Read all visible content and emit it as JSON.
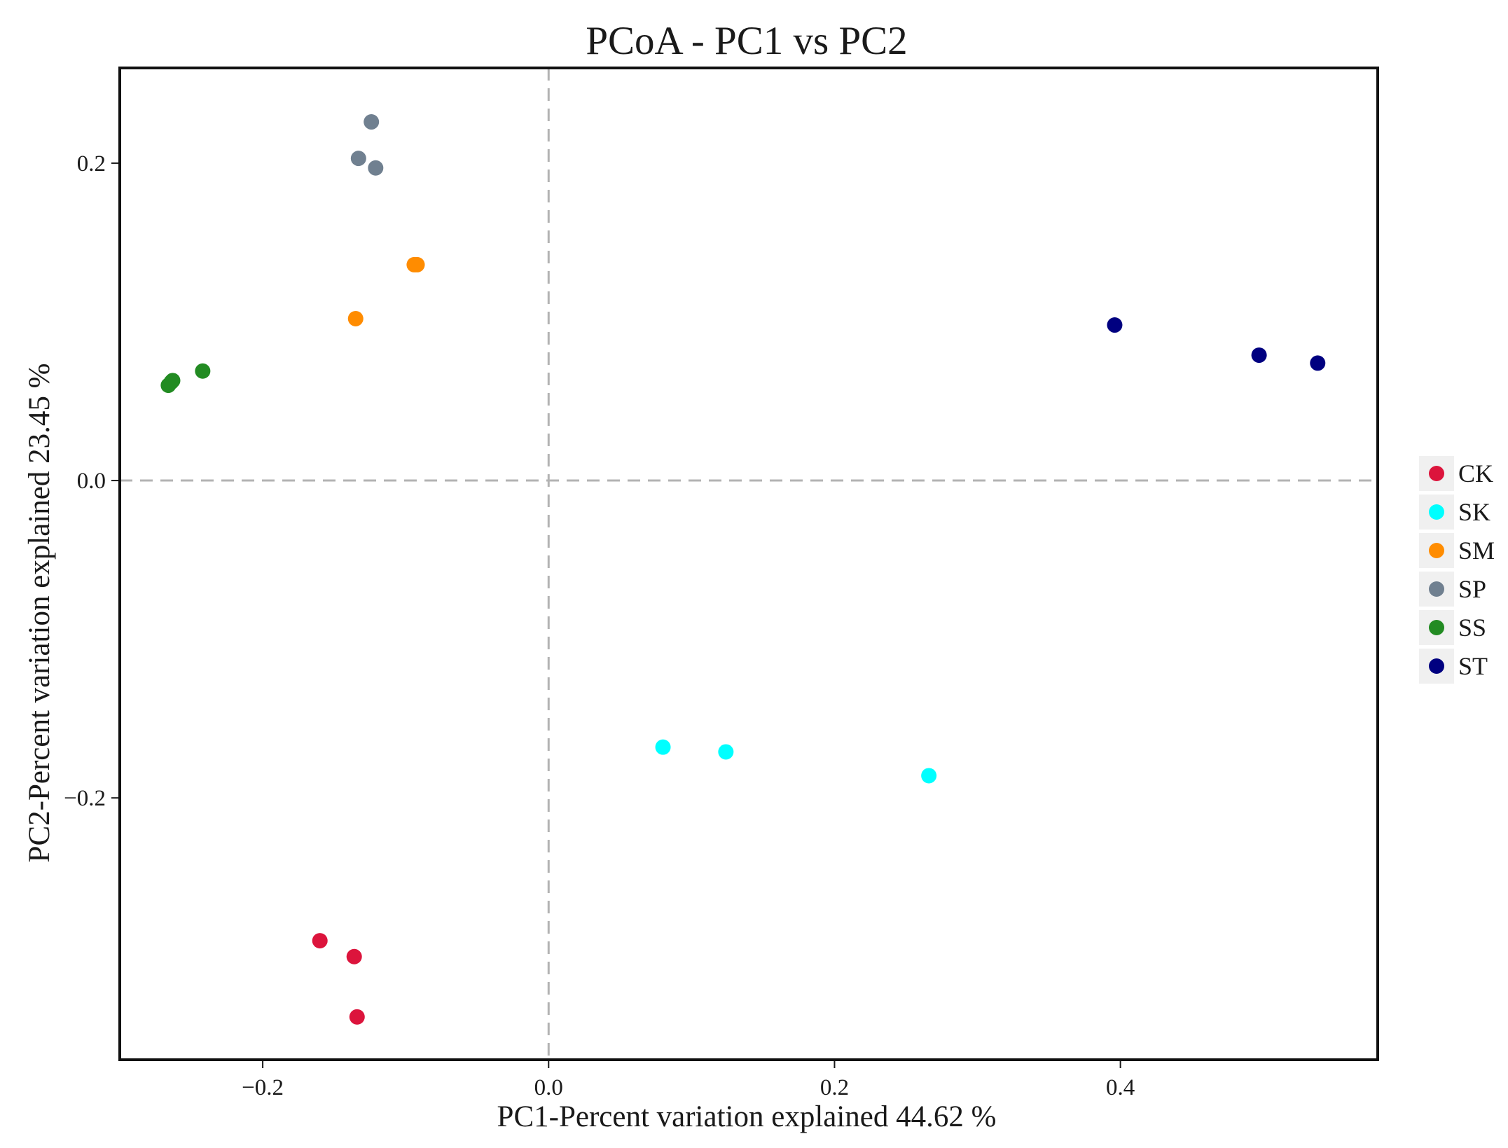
{
  "chart_data": {
    "type": "scatter",
    "title": "PCoA - PC1 vs PC2",
    "xlabel": "PC1-Percent variation explained 44.62 %",
    "ylabel": "PC2-Percent variation explained 23.45 %",
    "xlim": [
      -0.3,
      0.58
    ],
    "ylim": [
      -0.365,
      0.26
    ],
    "xticks": [
      -0.2,
      0.0,
      0.2,
      0.4
    ],
    "yticks": [
      -0.2,
      0.0,
      0.2
    ],
    "xtick_labels": [
      "−0.2",
      "0.0",
      "0.2",
      "0.4"
    ],
    "ytick_labels": [
      "−0.2",
      "0.0",
      "0.2"
    ],
    "reference_lines": {
      "x": 0.0,
      "y": 0.0,
      "style": "dashed"
    },
    "grid": false,
    "legend_position": "right",
    "series": [
      {
        "name": "CK",
        "color": "#dc143c",
        "points": [
          [
            -0.16,
            -0.29
          ],
          [
            -0.136,
            -0.3
          ],
          [
            -0.134,
            -0.338
          ]
        ]
      },
      {
        "name": "SK",
        "color": "#00ffff",
        "points": [
          [
            0.08,
            -0.168
          ],
          [
            0.124,
            -0.171
          ],
          [
            0.266,
            -0.186
          ]
        ]
      },
      {
        "name": "SM",
        "color": "#ff8c00",
        "points": [
          [
            -0.094,
            0.136
          ],
          [
            -0.092,
            0.136
          ],
          [
            -0.135,
            0.102
          ]
        ]
      },
      {
        "name": "SP",
        "color": "#708090",
        "points": [
          [
            -0.124,
            0.226
          ],
          [
            -0.133,
            0.203
          ],
          [
            -0.121,
            0.197
          ]
        ]
      },
      {
        "name": "SS",
        "color": "#228b22",
        "points": [
          [
            -0.266,
            0.06
          ],
          [
            -0.264,
            0.062
          ],
          [
            -0.263,
            0.063
          ],
          [
            -0.242,
            0.069
          ]
        ]
      },
      {
        "name": "ST",
        "color": "#000080",
        "points": [
          [
            0.396,
            0.098
          ],
          [
            0.497,
            0.079
          ],
          [
            0.538,
            0.074
          ]
        ]
      }
    ]
  }
}
